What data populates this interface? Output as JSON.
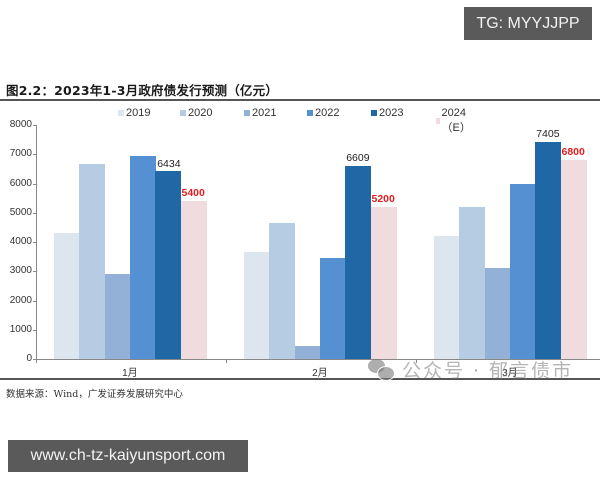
{
  "overlay": {
    "tg_badge": "TG: MYYJJPP",
    "url_badge": "www.ch-tz-kaiyunsport.com",
    "watermark": "公众号 · 郁言债市",
    "watermark_icon": "wechat-icon"
  },
  "figure": {
    "title": "图2.2：2023年1-3月政府债发行预测（亿元）",
    "source": "数据来源：Wind，广发证券发展研究中心"
  },
  "chart_data": {
    "type": "bar",
    "title": "2023年1-3月政府债发行预测（亿元）",
    "xlabel": "",
    "ylabel": "亿元",
    "ylim": [
      0,
      8000
    ],
    "yticks": [
      0,
      1000,
      2000,
      3000,
      4000,
      5000,
      6000,
      7000,
      8000
    ],
    "grid": false,
    "legend_position": "top",
    "categories": [
      "1月",
      "2月",
      "3月"
    ],
    "series": [
      {
        "name": "2019",
        "color": "#dde6ef",
        "values": [
          4300,
          3650,
          4200
        ]
      },
      {
        "name": "2020",
        "color": "#b6cce3",
        "values": [
          6650,
          4650,
          5200
        ]
      },
      {
        "name": "2021",
        "color": "#93b1d6",
        "values": [
          2900,
          450,
          3100
        ]
      },
      {
        "name": "2022",
        "color": "#5590d3",
        "values": [
          6950,
          3450,
          6000
        ]
      },
      {
        "name": "2023",
        "color": "#1f67a5",
        "values": [
          6434,
          6609,
          7405
        ],
        "labeled": true
      },
      {
        "name": "2024（E）",
        "color": "#f0dcdf",
        "values": [
          5400,
          5200,
          6800
        ],
        "labeled": true,
        "label_color": "#e02020"
      }
    ],
    "annotations": [
      {
        "category": "1月",
        "series": "2023",
        "text": "6434"
      },
      {
        "category": "1月",
        "series": "2024（E）",
        "text": "5400"
      },
      {
        "category": "2月",
        "series": "2023",
        "text": "6609"
      },
      {
        "category": "2月",
        "series": "2024（E）",
        "text": "5200"
      },
      {
        "category": "3月",
        "series": "2023",
        "text": "7405"
      },
      {
        "category": "3月",
        "series": "2024（E）",
        "text": "6800"
      }
    ]
  }
}
